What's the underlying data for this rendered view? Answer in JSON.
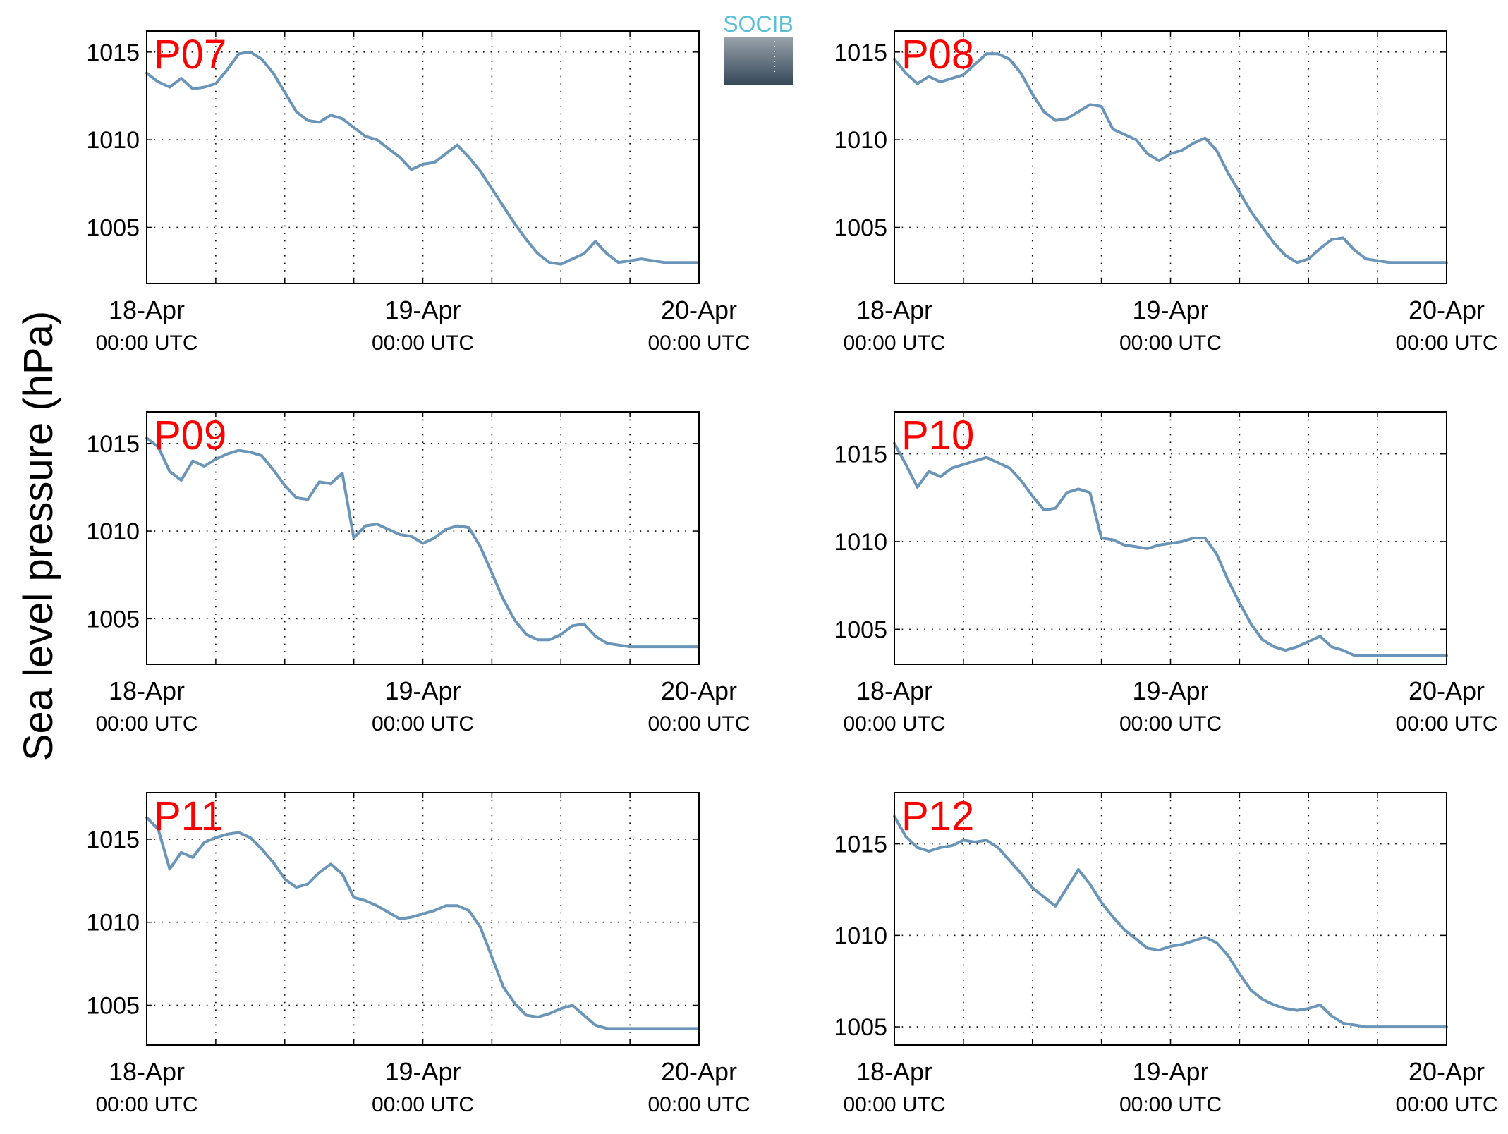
{
  "figure": {
    "ylabel": "Sea level pressure (hPa)",
    "logo_text": "SOCIB",
    "colors": {
      "series": "#6a95b8",
      "panel_label": "#ff0000",
      "logo_text": "#5bbfd6",
      "logo_box_top": "#9aa3ab",
      "logo_box_bottom": "#35495a"
    }
  },
  "chart_data": [
    {
      "type": "line",
      "panel": "P07",
      "title": "P07",
      "xlabel": "",
      "ylabel": "Sea level pressure (hPa)",
      "x_range": [
        "18-Apr 00:00 UTC",
        "20-Apr 00:00 UTC"
      ],
      "ylim": [
        1001.8,
        1016.2
      ],
      "x_ticks": [
        "18-Apr 00:00 UTC",
        "19-Apr 00:00 UTC",
        "20-Apr 00:00 UTC"
      ],
      "tick_labels_date": [
        "18-Apr",
        "19-Apr",
        "20-Apr"
      ],
      "tick_labels_time": [
        "00:00 UTC",
        "00:00 UTC",
        "00:00 UTC"
      ],
      "y_ticks": [
        1005,
        1010,
        1015
      ],
      "grid": true,
      "series": [
        {
          "x_hours": [
            0,
            1,
            2,
            3,
            4,
            5,
            6,
            7,
            8,
            9,
            10,
            11,
            12,
            13,
            14,
            15,
            16,
            17,
            18,
            19,
            20,
            21,
            22,
            23,
            24,
            25,
            26,
            27,
            28,
            29,
            30,
            31,
            32,
            33,
            34,
            35,
            36,
            37,
            38,
            39,
            40,
            41,
            42,
            43,
            44,
            45,
            46,
            47,
            48
          ],
          "values": [
            1013.8,
            1013.3,
            1013.0,
            1013.5,
            1012.9,
            1013.0,
            1013.2,
            1014.0,
            1014.9,
            1015.0,
            1014.6,
            1013.8,
            1012.7,
            1011.6,
            1011.1,
            1011.0,
            1011.4,
            1011.2,
            1010.7,
            1010.2,
            1010.0,
            1009.5,
            1009.0,
            1008.3,
            1008.6,
            1008.7,
            1009.2,
            1009.7,
            1009.0,
            1008.2,
            1007.2,
            1006.2,
            1005.2,
            1004.3,
            1003.5,
            1003.0,
            1002.9,
            1003.2,
            1003.5,
            1004.2,
            1003.5,
            1003.0,
            1003.1,
            1003.2,
            1003.1,
            1003.0,
            1003.0,
            1003.0,
            1003.0
          ]
        }
      ]
    },
    {
      "type": "line",
      "panel": "P08",
      "title": "P08",
      "xlabel": "",
      "ylabel": "Sea level pressure (hPa)",
      "x_range": [
        "18-Apr 00:00 UTC",
        "20-Apr 00:00 UTC"
      ],
      "ylim": [
        1001.8,
        1016.2
      ],
      "x_ticks": [
        "18-Apr 00:00 UTC",
        "19-Apr 00:00 UTC",
        "20-Apr 00:00 UTC"
      ],
      "tick_labels_date": [
        "18-Apr",
        "19-Apr",
        "20-Apr"
      ],
      "tick_labels_time": [
        "00:00 UTC",
        "00:00 UTC",
        "00:00 UTC"
      ],
      "y_ticks": [
        1005,
        1010,
        1015
      ],
      "grid": true,
      "series": [
        {
          "x_hours": [
            0,
            1,
            2,
            3,
            4,
            5,
            6,
            7,
            8,
            9,
            10,
            11,
            12,
            13,
            14,
            15,
            16,
            17,
            18,
            19,
            20,
            21,
            22,
            23,
            24,
            25,
            26,
            27,
            28,
            29,
            30,
            31,
            32,
            33,
            34,
            35,
            36,
            37,
            38,
            39,
            40,
            41,
            42,
            43,
            44,
            45,
            46,
            47,
            48
          ],
          "values": [
            1014.6,
            1013.8,
            1013.2,
            1013.6,
            1013.3,
            1013.5,
            1013.7,
            1014.3,
            1014.9,
            1014.9,
            1014.6,
            1013.8,
            1012.6,
            1011.6,
            1011.1,
            1011.2,
            1011.6,
            1012.0,
            1011.9,
            1010.6,
            1010.3,
            1010.0,
            1009.2,
            1008.8,
            1009.2,
            1009.4,
            1009.8,
            1010.1,
            1009.4,
            1008.1,
            1007.0,
            1005.9,
            1005.0,
            1004.1,
            1003.4,
            1003.0,
            1003.2,
            1003.8,
            1004.3,
            1004.4,
            1003.7,
            1003.2,
            1003.1,
            1003.0,
            1003.0,
            1003.0,
            1003.0,
            1003.0,
            1003.0
          ]
        }
      ]
    },
    {
      "type": "line",
      "panel": "P09",
      "title": "P09",
      "xlabel": "",
      "ylabel": "Sea level pressure (hPa)",
      "x_range": [
        "18-Apr 00:00 UTC",
        "20-Apr 00:00 UTC"
      ],
      "ylim": [
        1002.4,
        1016.8
      ],
      "x_ticks": [
        "18-Apr 00:00 UTC",
        "19-Apr 00:00 UTC",
        "20-Apr 00:00 UTC"
      ],
      "tick_labels_date": [
        "18-Apr",
        "19-Apr",
        "20-Apr"
      ],
      "tick_labels_time": [
        "00:00 UTC",
        "00:00 UTC",
        "00:00 UTC"
      ],
      "y_ticks": [
        1005,
        1010,
        1015
      ],
      "grid": true,
      "series": [
        {
          "x_hours": [
            0,
            1,
            2,
            3,
            4,
            5,
            6,
            7,
            8,
            9,
            10,
            11,
            12,
            13,
            14,
            15,
            16,
            17,
            18,
            19,
            20,
            21,
            22,
            23,
            24,
            25,
            26,
            27,
            28,
            29,
            30,
            31,
            32,
            33,
            34,
            35,
            36,
            37,
            38,
            39,
            40,
            41,
            42,
            43,
            44,
            45,
            46,
            47,
            48
          ],
          "values": [
            1015.3,
            1014.8,
            1013.4,
            1012.9,
            1014.0,
            1013.7,
            1014.1,
            1014.4,
            1014.6,
            1014.5,
            1014.3,
            1013.5,
            1012.6,
            1011.9,
            1011.8,
            1012.8,
            1012.7,
            1013.3,
            1009.6,
            1010.3,
            1010.4,
            1010.1,
            1009.8,
            1009.7,
            1009.3,
            1009.6,
            1010.1,
            1010.3,
            1010.2,
            1009.1,
            1007.6,
            1006.1,
            1004.9,
            1004.1,
            1003.8,
            1003.8,
            1004.1,
            1004.6,
            1004.7,
            1004.0,
            1003.6,
            1003.5,
            1003.4,
            1003.4,
            1003.4,
            1003.4,
            1003.4,
            1003.4,
            1003.4
          ]
        }
      ]
    },
    {
      "type": "line",
      "panel": "P10",
      "title": "P10",
      "xlabel": "",
      "ylabel": "Sea level pressure (hPa)",
      "x_range": [
        "18-Apr 00:00 UTC",
        "20-Apr 00:00 UTC"
      ],
      "ylim": [
        1003.0,
        1017.4
      ],
      "x_ticks": [
        "18-Apr 00:00 UTC",
        "19-Apr 00:00 UTC",
        "20-Apr 00:00 UTC"
      ],
      "tick_labels_date": [
        "18-Apr",
        "19-Apr",
        "20-Apr"
      ],
      "tick_labels_time": [
        "00:00 UTC",
        "00:00 UTC",
        "00:00 UTC"
      ],
      "y_ticks": [
        1005,
        1010,
        1015
      ],
      "grid": true,
      "series": [
        {
          "x_hours": [
            0,
            1,
            2,
            3,
            4,
            5,
            6,
            7,
            8,
            9,
            10,
            11,
            12,
            13,
            14,
            15,
            16,
            17,
            18,
            19,
            20,
            21,
            22,
            23,
            24,
            25,
            26,
            27,
            28,
            29,
            30,
            31,
            32,
            33,
            34,
            35,
            36,
            37,
            38,
            39,
            40,
            41,
            42,
            43,
            44,
            45,
            46,
            47,
            48
          ],
          "values": [
            1015.6,
            1014.4,
            1013.1,
            1014.0,
            1013.7,
            1014.2,
            1014.4,
            1014.6,
            1014.8,
            1014.5,
            1014.2,
            1013.5,
            1012.6,
            1011.8,
            1011.9,
            1012.8,
            1013.0,
            1012.8,
            1010.2,
            1010.1,
            1009.8,
            1009.7,
            1009.6,
            1009.8,
            1009.9,
            1010.0,
            1010.2,
            1010.2,
            1009.3,
            1007.8,
            1006.5,
            1005.3,
            1004.4,
            1004.0,
            1003.8,
            1004.0,
            1004.3,
            1004.6,
            1004.0,
            1003.8,
            1003.5,
            1003.5,
            1003.5,
            1003.5,
            1003.5,
            1003.5,
            1003.5,
            1003.5,
            1003.5
          ]
        }
      ]
    },
    {
      "type": "line",
      "panel": "P11",
      "title": "P11",
      "xlabel": "",
      "ylabel": "Sea level pressure (hPa)",
      "x_range": [
        "18-Apr 00:00 UTC",
        "20-Apr 00:00 UTC"
      ],
      "ylim": [
        1002.6,
        1017.8
      ],
      "x_ticks": [
        "18-Apr 00:00 UTC",
        "19-Apr 00:00 UTC",
        "20-Apr 00:00 UTC"
      ],
      "tick_labels_date": [
        "18-Apr",
        "19-Apr",
        "20-Apr"
      ],
      "tick_labels_time": [
        "00:00 UTC",
        "00:00 UTC",
        "00:00 UTC"
      ],
      "y_ticks": [
        1005,
        1010,
        1015
      ],
      "grid": true,
      "series": [
        {
          "x_hours": [
            0,
            1,
            2,
            3,
            4,
            5,
            6,
            7,
            8,
            9,
            10,
            11,
            12,
            13,
            14,
            15,
            16,
            17,
            18,
            19,
            20,
            21,
            22,
            23,
            24,
            25,
            26,
            27,
            28,
            29,
            30,
            31,
            32,
            33,
            34,
            35,
            36,
            37,
            38,
            39,
            40,
            41,
            42,
            43,
            44,
            45,
            46,
            47,
            48
          ],
          "values": [
            1016.3,
            1015.6,
            1013.2,
            1014.2,
            1013.9,
            1014.8,
            1015.1,
            1015.3,
            1015.4,
            1015.1,
            1014.4,
            1013.6,
            1012.6,
            1012.1,
            1012.3,
            1013.0,
            1013.5,
            1012.9,
            1011.5,
            1011.3,
            1011.0,
            1010.6,
            1010.2,
            1010.3,
            1010.5,
            1010.7,
            1011.0,
            1011.0,
            1010.7,
            1009.7,
            1007.9,
            1006.1,
            1005.1,
            1004.4,
            1004.3,
            1004.5,
            1004.8,
            1005.0,
            1004.4,
            1003.8,
            1003.6,
            1003.6,
            1003.6,
            1003.6,
            1003.6,
            1003.6,
            1003.6,
            1003.6,
            1003.6
          ]
        }
      ]
    },
    {
      "type": "line",
      "panel": "P12",
      "title": "P12",
      "xlabel": "",
      "ylabel": "Sea level pressure (hPa)",
      "x_range": [
        "18-Apr 00:00 UTC",
        "20-Apr 00:00 UTC"
      ],
      "ylim": [
        1004.0,
        1017.8
      ],
      "x_ticks": [
        "18-Apr 00:00 UTC",
        "19-Apr 00:00 UTC",
        "20-Apr 00:00 UTC"
      ],
      "tick_labels_date": [
        "18-Apr",
        "19-Apr",
        "20-Apr"
      ],
      "tick_labels_time": [
        "00:00 UTC",
        "00:00 UTC",
        "00:00 UTC"
      ],
      "y_ticks": [
        1005,
        1010,
        1015
      ],
      "grid": true,
      "series": [
        {
          "x_hours": [
            0,
            1,
            2,
            3,
            4,
            5,
            6,
            7,
            8,
            9,
            10,
            11,
            12,
            13,
            14,
            15,
            16,
            17,
            18,
            19,
            20,
            21,
            22,
            23,
            24,
            25,
            26,
            27,
            28,
            29,
            30,
            31,
            32,
            33,
            34,
            35,
            36,
            37,
            38,
            39,
            40,
            41,
            42,
            43,
            44,
            45,
            46,
            47,
            48
          ],
          "values": [
            1016.5,
            1015.4,
            1014.8,
            1014.6,
            1014.8,
            1014.9,
            1015.2,
            1015.1,
            1015.2,
            1014.8,
            1014.1,
            1013.4,
            1012.6,
            1012.1,
            1011.6,
            1012.6,
            1013.6,
            1012.8,
            1011.8,
            1011.0,
            1010.3,
            1009.8,
            1009.3,
            1009.2,
            1009.4,
            1009.5,
            1009.7,
            1009.9,
            1009.6,
            1008.9,
            1007.9,
            1007.0,
            1006.5,
            1006.2,
            1006.0,
            1005.9,
            1006.0,
            1006.2,
            1005.6,
            1005.2,
            1005.1,
            1005.0,
            1005.0,
            1005.0,
            1005.0,
            1005.0,
            1005.0,
            1005.0,
            1005.0
          ]
        }
      ]
    }
  ]
}
